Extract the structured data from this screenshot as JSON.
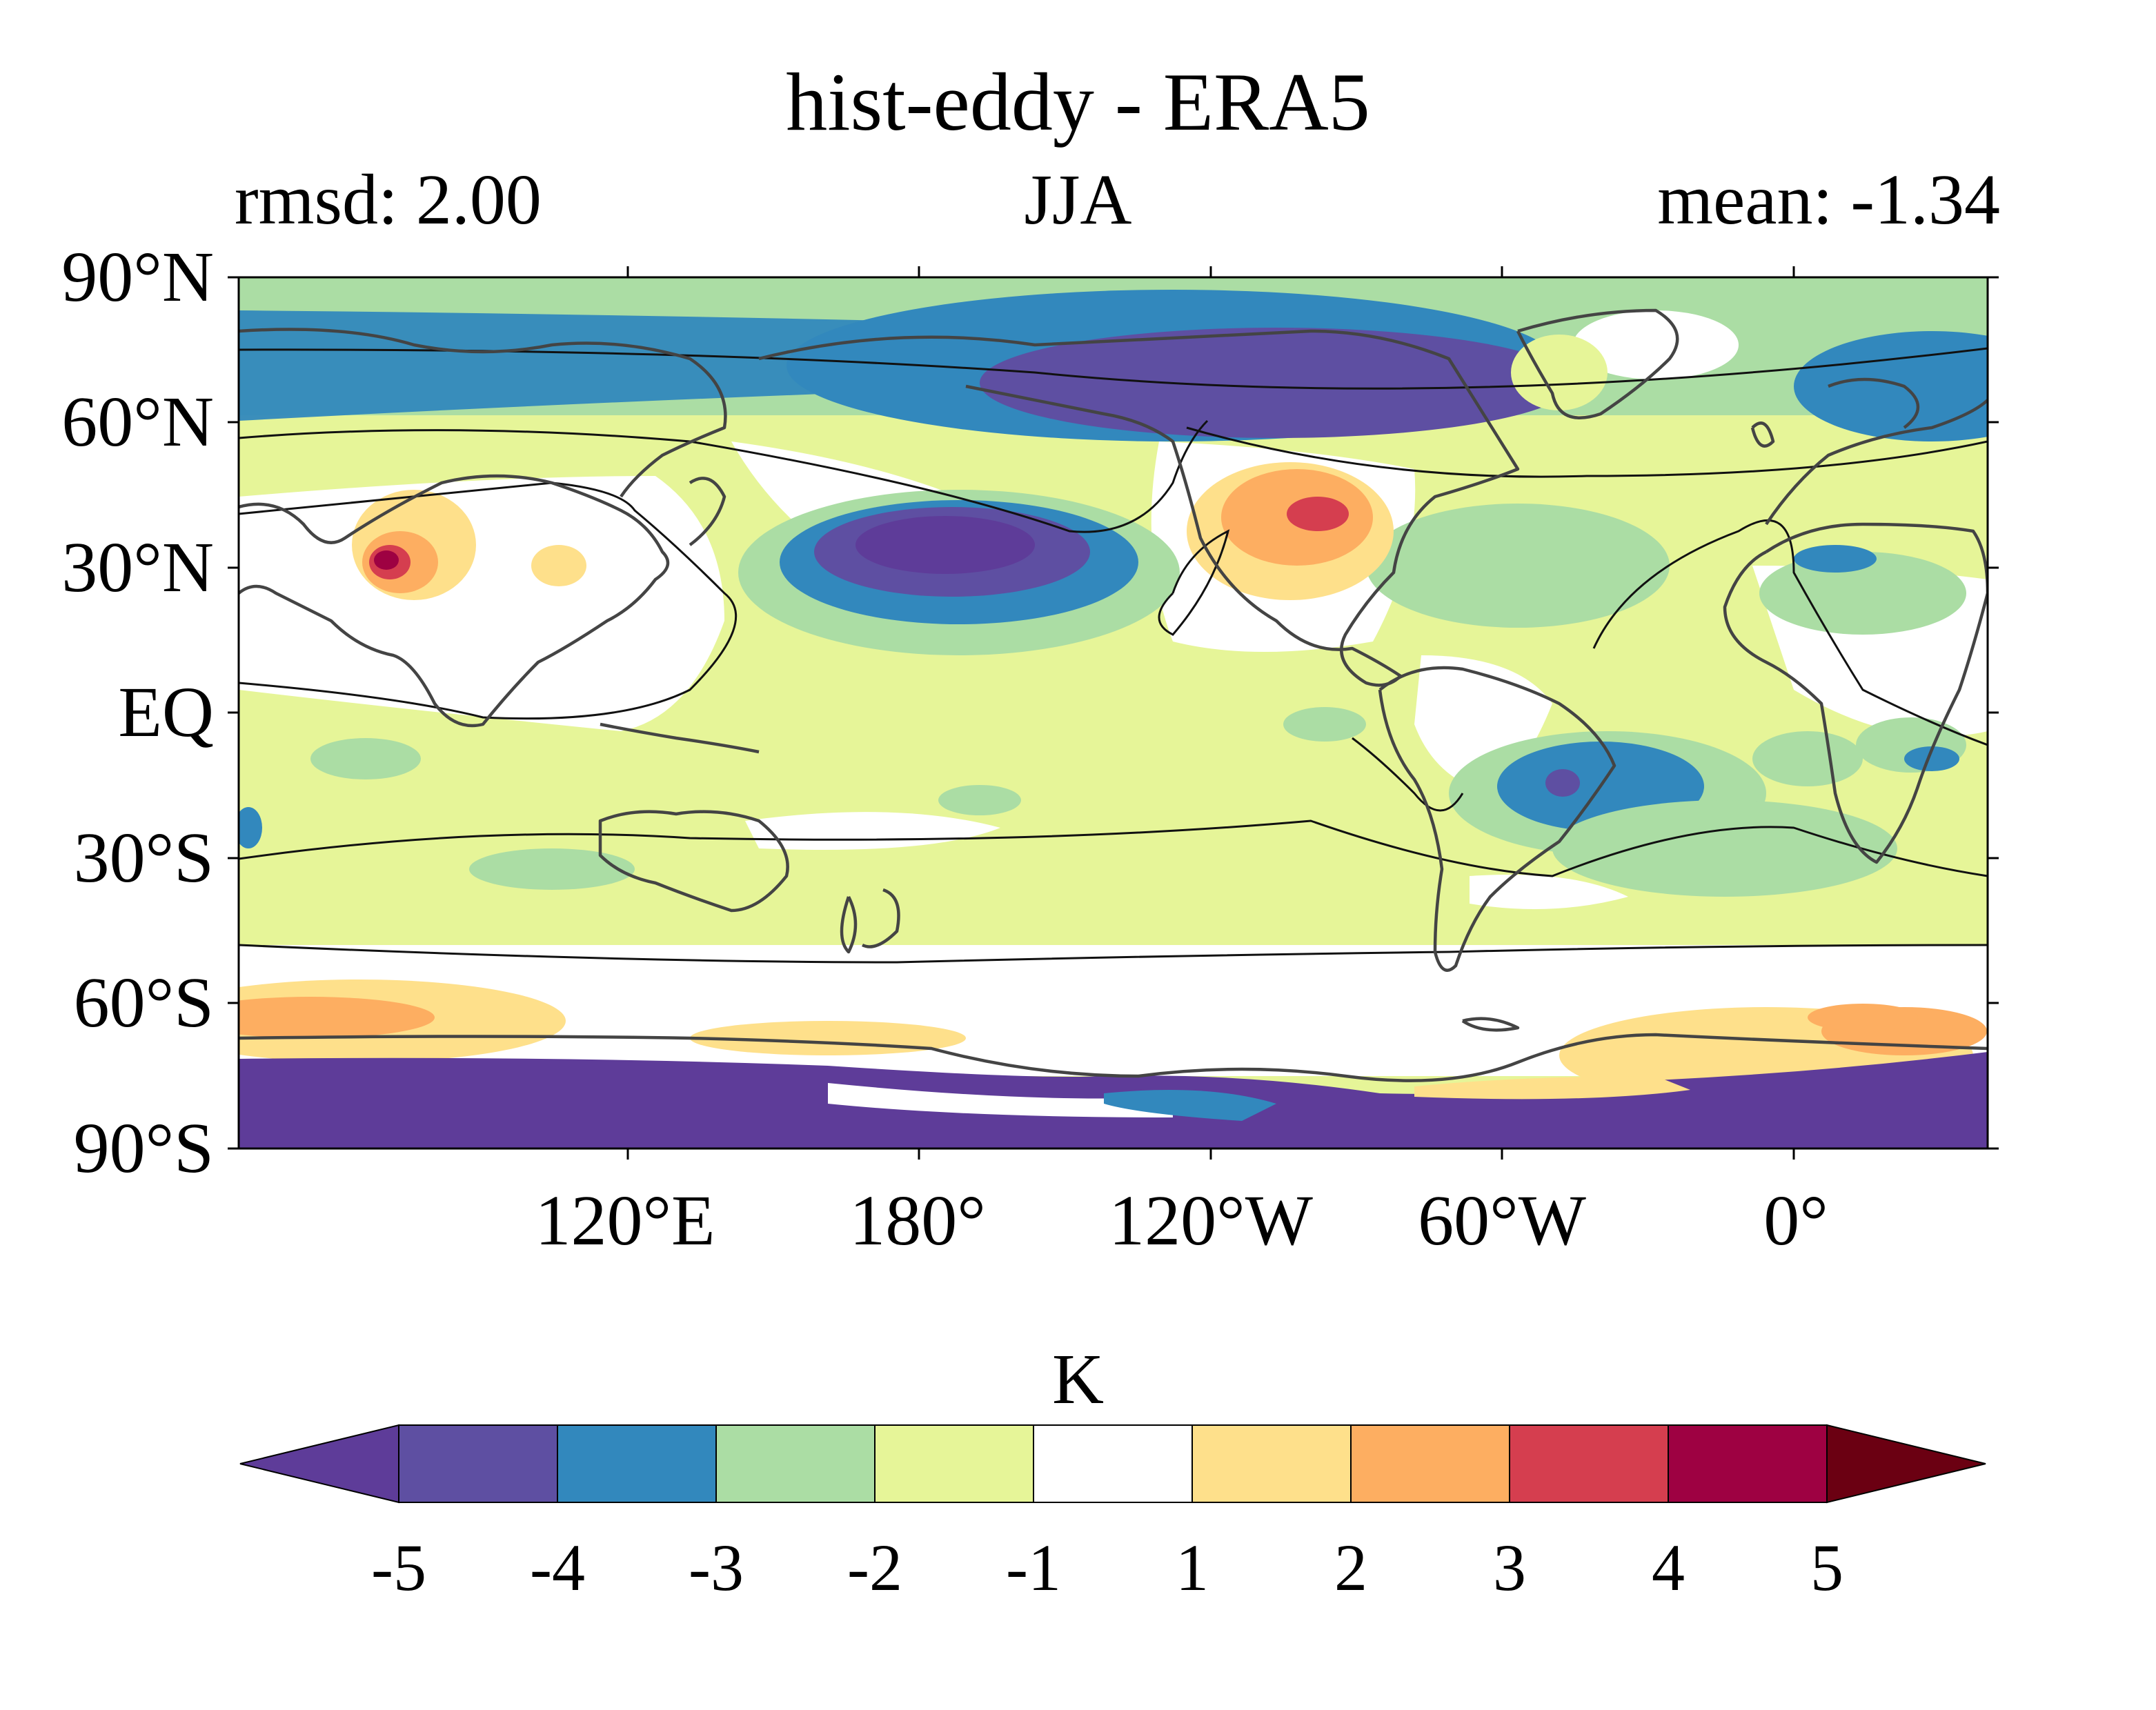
{
  "title": "hist-eddy - ERA5",
  "subtitle_left": "rmsd: 2.00",
  "subtitle_center": "JJA",
  "subtitle_right": "mean: -1.34",
  "lat_ticks": [
    "90°N",
    "60°N",
    "30°N",
    "EQ",
    "30°S",
    "60°S",
    "90°S"
  ],
  "lon_ticks": [
    "120°E",
    "180°",
    "120°W",
    "60°W",
    "0°"
  ],
  "colorbar": {
    "label": "K",
    "tick_labels": [
      "-5",
      "-4",
      "-3",
      "-2",
      "-1",
      "1",
      "2",
      "3",
      "4",
      "5"
    ],
    "colors": [
      "#5e3c99",
      "#5e4fa2",
      "#3288bd",
      "#abdda4",
      "#e6f598",
      "#ffffff",
      "#fee08b",
      "#fdae61",
      "#d53e4f",
      "#9e0142",
      "#6b0012"
    ]
  }
}
